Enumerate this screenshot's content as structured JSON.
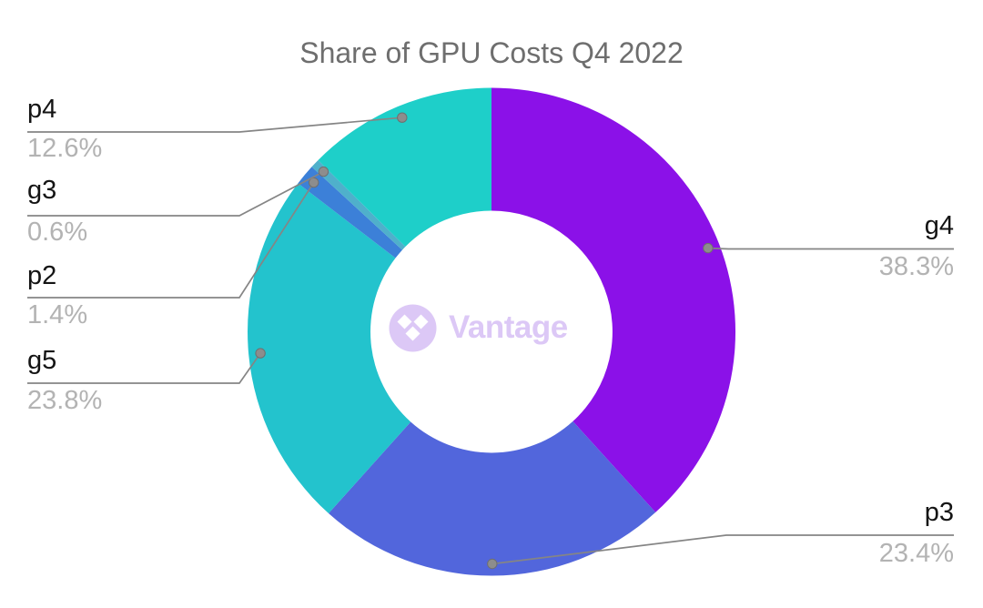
{
  "chart_data": {
    "type": "pie",
    "subtype": "donut",
    "title": "Share of GPU Costs Q4 2022",
    "units": "%",
    "legend_position": "none",
    "start_angle_deg": 0,
    "direction": "clockwise",
    "series": [
      {
        "name": "g4",
        "value": 38.3,
        "display": "38.3%",
        "color": "#8b11e8",
        "label_side": "right"
      },
      {
        "name": "p3",
        "value": 23.4,
        "display": "23.4%",
        "color": "#5266dc",
        "label_side": "right"
      },
      {
        "name": "g5",
        "value": 23.8,
        "display": "23.8%",
        "color": "#23c3cd",
        "label_side": "left"
      },
      {
        "name": "p2",
        "value": 1.4,
        "display": "1.4%",
        "color": "#3c80d8",
        "label_side": "left"
      },
      {
        "name": "g3",
        "value": 0.6,
        "display": "0.6%",
        "color": "#4fb0cb",
        "label_side": "left"
      },
      {
        "name": "p4",
        "value": 12.6,
        "display": "12.6%",
        "color": "#1ecfc9",
        "label_side": "left"
      }
    ]
  },
  "watermark": {
    "text": "Vantage"
  },
  "colors": {
    "background": "#ffffff",
    "title": "#6e6e6e",
    "slice_label_name": "#141414",
    "slice_label_value": "#b3b3b3",
    "leader_line": "#858585",
    "leader_dot_fill": "#8d8d8d",
    "leader_dot_stroke": "#6f6f6f",
    "watermark": "#dcc8f6",
    "donut_hole": "#ffffff"
  }
}
